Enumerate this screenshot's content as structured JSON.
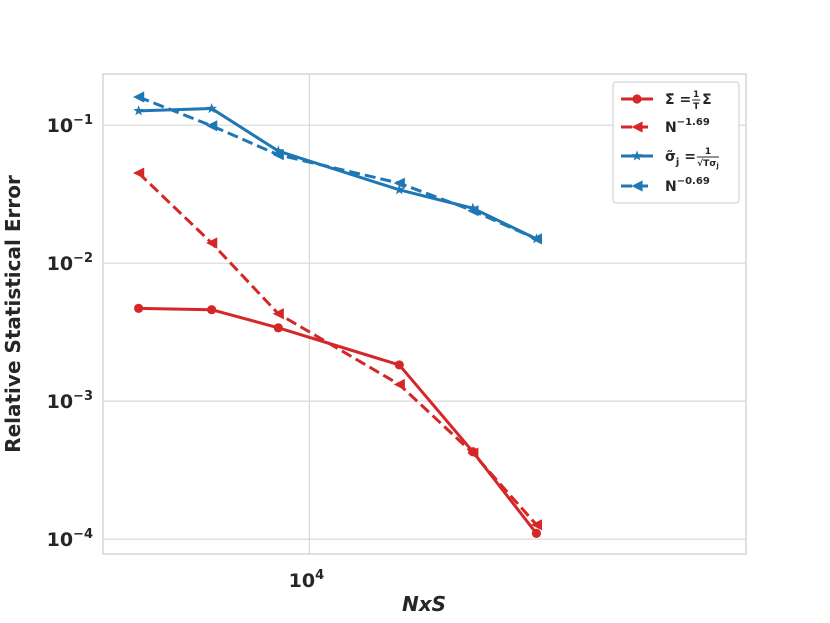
{
  "chart_data": {
    "type": "line",
    "xscale": "log",
    "yscale": "log",
    "xlabel": "NxS",
    "ylabel": "Relative Statistical Error",
    "xlim": [
      3400,
      98000
    ],
    "ylim": [
      7.8e-05,
      0.235
    ],
    "grid": true,
    "legend_position": "top-right",
    "x_ticks": [
      {
        "value": 10000,
        "base": "10",
        "exp": "4"
      }
    ],
    "y_ticks": [
      {
        "value": 0.1,
        "base": "10",
        "exp": "−1"
      },
      {
        "value": 0.01,
        "base": "10",
        "exp": "−2"
      },
      {
        "value": 0.001,
        "base": "10",
        "exp": "−3"
      },
      {
        "value": 0.0001,
        "base": "10",
        "exp": "−4"
      }
    ],
    "x": [
      4096,
      5793,
      8192,
      11585,
      16384,
      23170,
      32768
    ],
    "series": [
      {
        "name": "Σ̃ = (1/T) Σ",
        "color": "#d62728",
        "marker": "circle",
        "dash": "solid",
        "points": [
          [
            4096,
            0.0047
          ],
          [
            6000,
            0.0046
          ],
          [
            8500,
            0.0034
          ],
          [
            16000,
            0.00183
          ],
          [
            23500,
            0.00043
          ],
          [
            32768,
            0.00011
          ]
        ]
      },
      {
        "name": "N^−1.69",
        "color": "#d62728",
        "marker": "triangle-left",
        "dash": "dashed",
        "points": [
          [
            4096,
            0.045
          ],
          [
            6000,
            0.014
          ],
          [
            8500,
            0.0043
          ],
          [
            16000,
            0.00132
          ],
          [
            23500,
            0.00042
          ],
          [
            32768,
            0.000127
          ]
        ]
      },
      {
        "name": "σ̃_j = 1/(√T σ_j)",
        "color": "#1f77b4",
        "marker": "star",
        "dash": "solid",
        "points": [
          [
            4096,
            0.127
          ],
          [
            6000,
            0.132
          ],
          [
            8500,
            0.065
          ],
          [
            16000,
            0.034
          ],
          [
            23500,
            0.025
          ],
          [
            32768,
            0.015
          ]
        ]
      },
      {
        "name": "N^−0.69",
        "color": "#1f77b4",
        "marker": "triangle-left",
        "dash": "dashed",
        "points": [
          [
            4096,
            0.16
          ],
          [
            6000,
            0.099
          ],
          [
            8500,
            0.061
          ],
          [
            16000,
            0.038
          ],
          [
            23500,
            0.024
          ],
          [
            32768,
            0.015
          ]
        ]
      }
    ],
    "legend": [
      {
        "main": "Σ̃ = ",
        "frac_num": "1",
        "frac_den": "T",
        "tail": "Σ"
      },
      {
        "main": "N",
        "sup": "−1.69"
      },
      {
        "main": "σ̃",
        "sub": "j",
        "eq": " = ",
        "frac_num": "1",
        "frac_den": "√Tσ",
        "frac_den_sub": "j"
      },
      {
        "main": "N",
        "sup": "−0.69"
      }
    ]
  }
}
